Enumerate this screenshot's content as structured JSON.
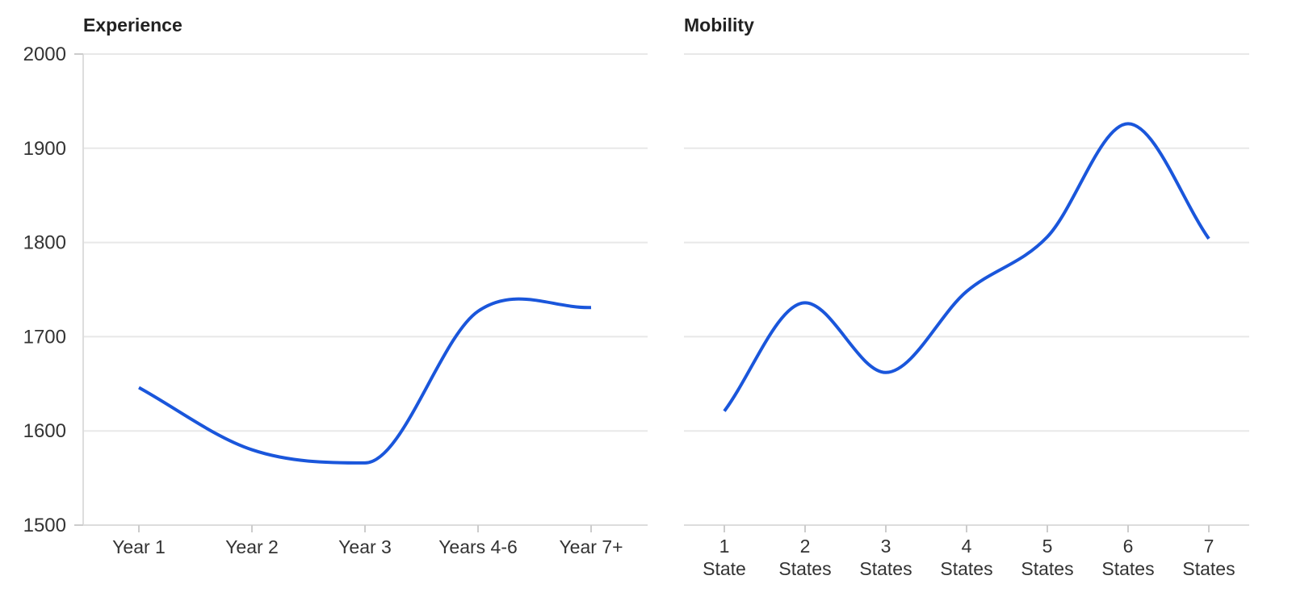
{
  "colors": {
    "line": "#1a56db",
    "grid": "#e8e8e8",
    "text": "#333333"
  },
  "y_ticks": [
    "2000",
    "1900",
    "1800",
    "1700",
    "1600",
    "1500"
  ],
  "chart_data": [
    {
      "type": "line",
      "title": "Experience",
      "categories": [
        [
          "Year 1"
        ],
        [
          "Year 2"
        ],
        [
          "Year 3"
        ],
        [
          "Years 4-6"
        ],
        [
          "Year 7+"
        ]
      ],
      "values": [
        1646,
        1580,
        1566,
        1727,
        1731
      ],
      "ylim": [
        1500,
        2000
      ],
      "grid": true,
      "smooth": true
    },
    {
      "type": "line",
      "title": "Mobility",
      "categories": [
        [
          "1",
          "State"
        ],
        [
          "2",
          "States"
        ],
        [
          "3",
          "States"
        ],
        [
          "4",
          "States"
        ],
        [
          "5",
          "States"
        ],
        [
          "6",
          "States"
        ],
        [
          "7",
          "States"
        ]
      ],
      "values": [
        1621,
        1736,
        1662,
        1748,
        1806,
        1926,
        1804
      ],
      "ylim": [
        1500,
        2000
      ],
      "grid": true,
      "smooth": true
    }
  ]
}
